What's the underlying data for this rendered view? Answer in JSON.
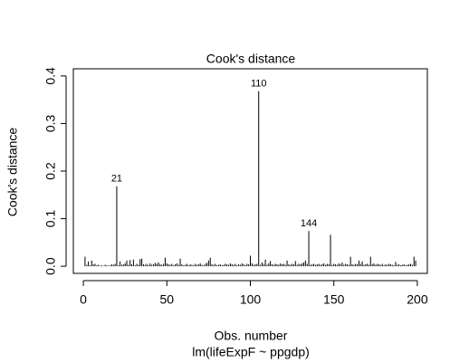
{
  "chart_data": {
    "type": "spike",
    "title": "Cook's distance",
    "xlabel": "Obs. number",
    "subtitle": "lm(lifeExpF ~ ppgdp)",
    "ylabel": "Cook's distance",
    "xlim": [
      -6,
      206
    ],
    "ylim": [
      -0.015,
      0.415
    ],
    "xticks": [
      0,
      50,
      100,
      150,
      200
    ],
    "yticks": [
      {
        "value": 0,
        "label": "0.0"
      },
      0.1,
      0.2,
      0.3,
      0.4
    ],
    "color": "#000000",
    "x": [
      1,
      2,
      3,
      4,
      5,
      6,
      7,
      8,
      9,
      10,
      11,
      12,
      13,
      14,
      15,
      16,
      17,
      18,
      19,
      20,
      21,
      22,
      23,
      24,
      25,
      26,
      27,
      28,
      29,
      30,
      31,
      32,
      33,
      34,
      35,
      36,
      37,
      38,
      39,
      40,
      41,
      42,
      43,
      44,
      45,
      46,
      47,
      48,
      49,
      50,
      51,
      52,
      53,
      54,
      55,
      56,
      57,
      58,
      59,
      60,
      61,
      62,
      63,
      64,
      65,
      66,
      67,
      68,
      69,
      70,
      71,
      72,
      73,
      74,
      75,
      76,
      77,
      78,
      79,
      80,
      81,
      82,
      83,
      84,
      85,
      86,
      87,
      88,
      89,
      90,
      91,
      92,
      93,
      94,
      95,
      96,
      97,
      98,
      99,
      100,
      101,
      102,
      103,
      104,
      105,
      106,
      107,
      108,
      109,
      110,
      111,
      112,
      113,
      114,
      115,
      116,
      117,
      118,
      119,
      120,
      121,
      122,
      123,
      124,
      125,
      126,
      127,
      128,
      129,
      130,
      131,
      132,
      133,
      134,
      135,
      136,
      137,
      138,
      139,
      140,
      141,
      142,
      143,
      144,
      145,
      146,
      147,
      148,
      149,
      150,
      151,
      152,
      153,
      154,
      155,
      156,
      157,
      158,
      159,
      160,
      161,
      162,
      163,
      164,
      165,
      166,
      167,
      168,
      169,
      170,
      171,
      172,
      173,
      174,
      175,
      176,
      177,
      178,
      179,
      180,
      181,
      182,
      183,
      184,
      185,
      186,
      187,
      188,
      189,
      190,
      191,
      192,
      193,
      194,
      195,
      196,
      197,
      198,
      199
    ],
    "values": [
      0.02,
      0.003,
      0.01,
      0.002,
      0.012,
      0.004,
      0.005,
      0.002,
      0.003,
      0.001,
      0.002,
      0.001,
      0.003,
      0.002,
      0.001,
      0.002,
      0.004,
      0.003,
      0.005,
      0.168,
      0.002,
      0.01,
      0.003,
      0.004,
      0.006,
      0.012,
      0.003,
      0.013,
      0.004,
      0.014,
      0.002,
      0.005,
      0.003,
      0.015,
      0.016,
      0.004,
      0.003,
      0.005,
      0.002,
      0.006,
      0.003,
      0.004,
      0.007,
      0.005,
      0.008,
      0.004,
      0.003,
      0.005,
      0.018,
      0.006,
      0.004,
      0.003,
      0.005,
      0.002,
      0.004,
      0.006,
      0.003,
      0.016,
      0.004,
      0.002,
      0.003,
      0.005,
      0.002,
      0.004,
      0.003,
      0.002,
      0.005,
      0.003,
      0.004,
      0.006,
      0.003,
      0.002,
      0.005,
      0.007,
      0.012,
      0.018,
      0.004,
      0.003,
      0.005,
      0.002,
      0.003,
      0.004,
      0.002,
      0.003,
      0.005,
      0.004,
      0.003,
      0.006,
      0.004,
      0.003,
      0.005,
      0.002,
      0.004,
      0.003,
      0.006,
      0.004,
      0.002,
      0.005,
      0.004,
      0.022,
      0.006,
      0.003,
      0.004,
      0.005,
      0.368,
      0.003,
      0.008,
      0.004,
      0.014,
      0.003,
      0.006,
      0.011,
      0.004,
      0.003,
      0.005,
      0.004,
      0.003,
      0.006,
      0.004,
      0.005,
      0.003,
      0.012,
      0.004,
      0.003,
      0.005,
      0.004,
      0.011,
      0.003,
      0.005,
      0.004,
      0.006,
      0.008,
      0.012,
      0.005,
      0.074,
      0.003,
      0.004,
      0.005,
      0.003,
      0.004,
      0.005,
      0.003,
      0.004,
      0.006,
      0.003,
      0.005,
      0.004,
      0.066,
      0.003,
      0.005,
      0.004,
      0.003,
      0.006,
      0.004,
      0.008,
      0.003,
      0.005,
      0.004,
      0.003,
      0.02,
      0.004,
      0.003,
      0.005,
      0.004,
      0.012,
      0.005,
      0.01,
      0.003,
      0.004,
      0.005,
      0.003,
      0.02,
      0.004,
      0.006,
      0.003,
      0.005,
      0.004,
      0.003,
      0.005,
      0.002,
      0.004,
      0.003,
      0.005,
      0.004,
      0.003,
      0.002,
      0.009,
      0.003,
      0.004,
      0.002,
      0.003,
      0.004,
      0.002,
      0.003,
      0.004,
      0.005,
      0.003,
      0.02,
      0.012
    ],
    "point_labels": [
      {
        "x": 20,
        "label": "21"
      },
      {
        "x": 105,
        "label": "110"
      },
      {
        "x": 135,
        "label": "144"
      }
    ]
  }
}
